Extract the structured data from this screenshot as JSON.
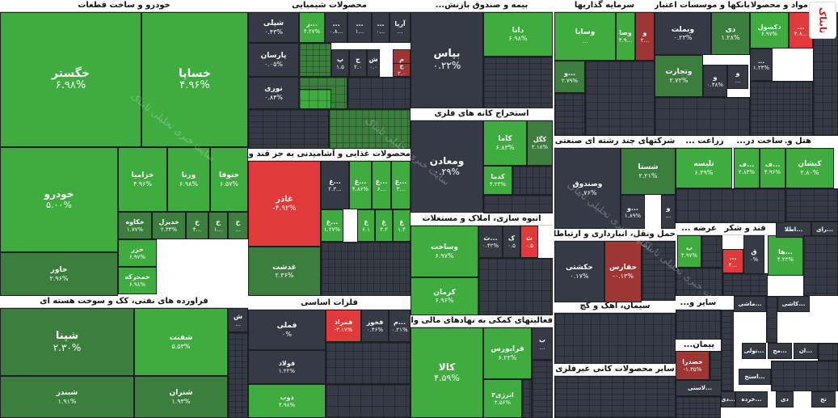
{
  "colors": {
    "dark": "#363a45",
    "mid": "#3c7e3e",
    "green": "#3eac3f",
    "bright": "#45d949",
    "red": "#e13a3a",
    "darkred": "#9e3636",
    "orange": "#cf8d2e"
  },
  "logo_text": "تابناک",
  "watermark_text": "سایت خبری تحلیلی تابناک",
  "chart_data": {
    "type": "heatmap",
    "sectors": [
      {
        "id": "auto",
        "title": "خودرو و ساخت قطعات",
        "tiles": [
          {
            "id": "t1",
            "label": "خگستر",
            "value": "۶.۹۸%",
            "tone": "green"
          },
          {
            "id": "t2",
            "label": "خساپا",
            "value": "۴.۹۶%",
            "tone": "green"
          },
          {
            "id": "t3",
            "label": "خودرو",
            "value": "۵.۰۰%",
            "tone": "green"
          },
          {
            "id": "t4",
            "label": "خزامیا",
            "value": "۴.۹۶%",
            "tone": "green"
          },
          {
            "id": "t5",
            "label": "ورنا",
            "value": "۶.۹۸%",
            "tone": "green"
          },
          {
            "id": "t6",
            "label": "ختوقا",
            "value": "۶.۵۷%",
            "tone": "green"
          },
          {
            "id": "t7",
            "label": "خکاوه",
            "value": "۱.۷۷%",
            "tone": "mid"
          },
          {
            "id": "t8",
            "label": "خدیزل",
            "value": "۲.۳۳%",
            "tone": "mid"
          },
          {
            "id": "t9",
            "label": "خ",
            "value": "۴...",
            "tone": "mid"
          },
          {
            "id": "t10",
            "label": "خ",
            "value": "۱...",
            "tone": "mid"
          },
          {
            "id": "t11",
            "label": "خ",
            "value": "...",
            "tone": "mid"
          },
          {
            "id": "t12",
            "label": "خزر",
            "value": "۶.۹۷%",
            "tone": "green"
          },
          {
            "id": "t13",
            "label": "خمحرکه",
            "value": "۶.۹۸%",
            "tone": "green"
          },
          {
            "id": "t14",
            "label": "خاور",
            "value": "۲.۹۶%",
            "tone": "mid"
          }
        ]
      },
      {
        "id": "chem",
        "title": "محصولات شیمیایی",
        "tiles": [
          {
            "id": "c1",
            "label": "شپلی",
            "value": "۰.۴۳%",
            "tone": "dark"
          },
          {
            "id": "c2",
            "label": "ز...",
            "value": "۴.۲۷%",
            "tone": "green"
          },
          {
            "id": "c3",
            "label": "...",
            "value": "۰.۸...",
            "tone": "dark"
          },
          {
            "id": "c4",
            "label": "...",
            "value": "۱...",
            "tone": "dark"
          },
          {
            "id": "c5",
            "label": "...",
            "value": "۰...",
            "tone": "dark"
          },
          {
            "id": "c6",
            "label": "آریا",
            "value": "...",
            "tone": "dark"
          },
          {
            "id": "c7",
            "label": "پارسان",
            "value": "۰.۰۵%",
            "tone": "dark"
          },
          {
            "id": "c8",
            "label": "پ",
            "value": "۱.۵",
            "tone": "dark"
          },
          {
            "id": "c9",
            "label": "ج",
            "value": "۲.۰",
            "tone": "dark"
          },
          {
            "id": "c10",
            "label": "ش",
            "value": "۰.۰",
            "tone": "dark"
          },
          {
            "id": "c11",
            "label": "م",
            "value": "۲.۵",
            "tone": "darkred"
          },
          {
            "id": "c12",
            "label": "ح",
            "value": "۲.۰",
            "tone": "darkred"
          },
          {
            "id": "c13",
            "label": "نوری",
            "value": "۰.۸۴%",
            "tone": "dark"
          }
        ]
      },
      {
        "id": "etf",
        "title": "بیمه و صندوق بازنش...",
        "tiles": [
          {
            "id": "e1",
            "label": "بپاس",
            "value": "۰.۲۲%",
            "tone": "dark"
          },
          {
            "id": "e2",
            "label": "دانا",
            "value": "۶.۹۸%",
            "tone": "green"
          }
        ]
      },
      {
        "id": "inv",
        "title": "سرمایه گذاریها",
        "tiles": [
          {
            "id": "i1",
            "label": "وسایا",
            "value": "...",
            "tone": "green"
          },
          {
            "id": "i2",
            "label": "وصا",
            "value": "۴.۹...",
            "tone": "green"
          },
          {
            "id": "i3",
            "label": "و",
            "value": "۲...",
            "tone": "darkred"
          },
          {
            "id": "i4",
            "label": "و...",
            "value": "۲.۷۹%",
            "tone": "mid"
          }
        ]
      },
      {
        "id": "bank",
        "title": "بانکها و موسسات اعتباری",
        "tiles": [
          {
            "id": "b1",
            "label": "وبملت",
            "value": "۰.۲۳%",
            "tone": "dark"
          },
          {
            "id": "b2",
            "label": "دی",
            "value": "۱.۲۸%",
            "tone": "mid"
          },
          {
            "id": "b3",
            "label": "وتجارت",
            "value": "۲.۷۲%",
            "tone": "mid"
          },
          {
            "id": "b4",
            "label": "و",
            "value": "۰.۴۸%",
            "tone": "dark"
          },
          {
            "id": "b5",
            "label": "و",
            "value": "...",
            "tone": "dark"
          }
        ]
      },
      {
        "id": "pharma",
        "title": "مواد و محصولات دارویی",
        "tiles": [
          {
            "id": "p1",
            "label": "دکسول",
            "value": "۶.۹۷%",
            "tone": "green"
          },
          {
            "id": "p2",
            "label": "...",
            "value": "۴.۸...",
            "tone": "red"
          },
          {
            "id": "p3",
            "label": "...",
            "value": "۱.۲۳%",
            "tone": "dark"
          }
        ]
      },
      {
        "id": "metal",
        "title": "استخراج کانه های فلزی",
        "tiles": [
          {
            "id": "m1",
            "label": "ومعادن",
            "value": "۰.۲۹%",
            "tone": "dark"
          },
          {
            "id": "m2",
            "label": "کاما",
            "value": "۶.۸۳%",
            "tone": "green"
          },
          {
            "id": "m3",
            "label": "کگل",
            "value": "۲.۱۸%",
            "tone": "mid"
          },
          {
            "id": "m4",
            "label": "کدما",
            "value": "۴.۲۳%",
            "tone": "green"
          }
        ]
      },
      {
        "id": "multi",
        "title": "شرکتهای چند رشته ای صنعتی",
        "tiles": [
          {
            "id": "u1",
            "label": "شستا",
            "value": "۲.۲۱%",
            "tone": "mid"
          },
          {
            "id": "u2",
            "label": "وصندوق",
            "value": "۰.۷۶%",
            "tone": "dark"
          },
          {
            "id": "u3",
            "label": "و...",
            "value": "۱.۸۹%",
            "tone": "dark"
          },
          {
            "id": "u4",
            "label": "و",
            "value": "...",
            "tone": "dark"
          }
        ]
      },
      {
        "id": "agri",
        "title": "زراعت ...",
        "tiles": [
          {
            "id": "a1",
            "label": "تلیسه",
            "value": "۶.۳۹%",
            "tone": "green"
          },
          {
            "id": "a2",
            "label": "ف...",
            "value": "۲.۸۳%",
            "tone": "green"
          },
          {
            "id": "a3",
            "label": "ف...",
            "value": "۴.۹۶%",
            "tone": "green"
          }
        ]
      },
      {
        "id": "build",
        "title": "ساخت در...",
        "tiles": [
          {
            "id": "s1",
            "label": "کیشان",
            "value": "۲.۸۰%",
            "tone": "green"
          }
        ]
      },
      {
        "id": "hotel",
        "title": "هتل و...",
        "tiles": []
      },
      {
        "id": "food",
        "title": "محصولات غذایی و آشامیدنی به جز قند و شکر",
        "tiles": [
          {
            "id": "f1",
            "label": "غاذر",
            "value": "-۴.۹۲%",
            "tone": "red"
          },
          {
            "id": "f2",
            "label": "غ...",
            "value": "۲.۳...",
            "tone": "dark"
          },
          {
            "id": "f3",
            "label": "غ...",
            "value": "۴.۸۶%",
            "tone": "green"
          },
          {
            "id": "f4",
            "label": "غ...",
            "value": "۶...",
            "tone": "green"
          },
          {
            "id": "f5",
            "label": "غ...",
            "value": "۳...",
            "tone": "green"
          },
          {
            "id": "f6",
            "label": "غدشت",
            "value": "۲.۳۶%",
            "tone": "mid"
          },
          {
            "id": "f7",
            "label": "غ...",
            "value": "۱.۲۷%",
            "tone": "green"
          },
          {
            "id": "f8",
            "label": "غ",
            "value": "۶.۱",
            "tone": "green"
          },
          {
            "id": "f9",
            "label": "غ",
            "value": "۳.۲",
            "tone": "green"
          },
          {
            "id": "f10",
            "label": "غ",
            "value": "۱.۴",
            "tone": "green"
          }
        ]
      },
      {
        "id": "mass",
        "title": "انبوه سازی، املاک و مستغلات",
        "tiles": [
          {
            "id": "n1",
            "label": "وساخت",
            "value": "۶.۹۷%",
            "tone": "green"
          },
          {
            "id": "n2",
            "label": "ث...",
            "value": "۰.۴۲%",
            "tone": "dark"
          },
          {
            "id": "n3",
            "label": "ک",
            "value": "۰.۵",
            "tone": "dark"
          },
          {
            "id": "n4",
            "label": "ث",
            "value": "۰.۵",
            "tone": "red"
          },
          {
            "id": "n5",
            "label": "کرمان",
            "value": "۶.۹۶%",
            "tone": "green"
          }
        ]
      },
      {
        "id": "transport",
        "title": "حمل ونقل، انبارداری و ارتباطات",
        "tiles": [
          {
            "id": "r1",
            "label": "حکشتی",
            "value": "۰.۱۷%",
            "tone": "dark"
          },
          {
            "id": "r2",
            "label": "حفارس",
            "value": "-۰.۱۳%",
            "tone": "darkred"
          }
        ]
      },
      {
        "id": "sugar",
        "title": "قند و شکر",
        "tiles": [
          {
            "id": "q1",
            "label": "ب",
            "value": "۴.۹۷%",
            "tone": "green"
          },
          {
            "id": "q2",
            "label": "...",
            "value": "۴...",
            "tone": "red"
          },
          {
            "id": "q3",
            "label": "ق",
            "value": "۰%",
            "tone": "dark"
          },
          {
            "id": "q4",
            "label": "ها...",
            "value": "۴.۲۳%",
            "tone": "green"
          }
        ]
      },
      {
        "id": "misc",
        "title": "عرضه ...",
        "tiles": []
      },
      {
        "id": "refine",
        "title": "فراورده های نفتی، کک و سوخت هسته ای",
        "tiles": [
          {
            "id": "o1",
            "label": "شپنا",
            "value": "۲.۳۰%",
            "tone": "mid"
          },
          {
            "id": "o2",
            "label": "شفنت",
            "value": "۵.۵۳%",
            "tone": "green"
          },
          {
            "id": "o3",
            "label": "ش",
            "value": "...",
            "tone": "dark"
          },
          {
            "id": "o4",
            "label": "شبندر",
            "value": "۱.۹۱%",
            "tone": "mid"
          },
          {
            "id": "o5",
            "label": "شتران",
            "value": "۱.۹۳%",
            "tone": "mid"
          }
        ]
      },
      {
        "id": "basemetal",
        "title": "فلزات اساسی",
        "tiles": [
          {
            "id": "g1",
            "label": "فملی",
            "value": "۰%",
            "tone": "dark"
          },
          {
            "id": "g2",
            "label": "فمراد",
            "value": "-۳.۱۷%",
            "tone": "red"
          },
          {
            "id": "g3",
            "label": "فخوز",
            "value": "۰.۴۶%",
            "tone": "dark"
          },
          {
            "id": "g4",
            "label": "م...",
            "value": "۰.۲۱%",
            "tone": "dark"
          },
          {
            "id": "g5",
            "label": "فولاد",
            "value": "۱.۲۲%",
            "tone": "dark"
          },
          {
            "id": "g6",
            "label": "ذوب",
            "value": "۴.۹۸%",
            "tone": "green"
          }
        ]
      },
      {
        "id": "fin",
        "title": "فعالیتهای کمکی به نهادهای مالی واسط",
        "tiles": [
          {
            "id": "h1",
            "label": "کالا",
            "value": "۴.۵۹%",
            "tone": "green"
          },
          {
            "id": "h2",
            "label": "فرابورس",
            "value": "۶.۲۲%",
            "tone": "green"
          },
          {
            "id": "h3",
            "label": "ب",
            "value": "...",
            "tone": "dark"
          },
          {
            "id": "h4",
            "label": "انرژی۳",
            "value": "۲.۵۶%",
            "tone": "green"
          }
        ]
      },
      {
        "id": "cement",
        "title": "سیمان، آهک و گچ",
        "tiles": []
      },
      {
        "id": "other",
        "title": "سایر و...",
        "tiles": []
      },
      {
        "id": "contract",
        "title": "پیمان...",
        "tiles": []
      },
      {
        "id": "nonmetal",
        "title": "سایر محصولات کانی غیرفلزی",
        "tiles": []
      },
      {
        "id": "khodra",
        "title": "",
        "tiles": [
          {
            "id": "k1",
            "label": "خصدرا",
            "value": "-۱.۳۵%",
            "tone": "darkred"
          }
        ]
      },
      {
        "id": "tiny",
        "title": "",
        "tiles": [
          {
            "id": "y1",
            "label": "رای...",
            "value": "",
            "tone": "dark"
          },
          {
            "id": "y2",
            "label": "اطلا...",
            "value": "",
            "tone": "dark"
          },
          {
            "id": "y3",
            "label": "ماشی...",
            "value": "",
            "tone": "dark"
          },
          {
            "id": "y4",
            "label": "کاشی...",
            "value": "",
            "tone": "dark"
          },
          {
            "id": "y5",
            "label": "م...",
            "value": "",
            "tone": "dark"
          },
          {
            "id": "y6",
            "label": "ان...",
            "value": "",
            "tone": "dark"
          },
          {
            "id": "y7",
            "label": "مح...",
            "value": "",
            "tone": "dark"
          },
          {
            "id": "y8",
            "label": "تولی...",
            "value": "",
            "tone": "dark"
          },
          {
            "id": "y9",
            "label": "استخ...",
            "value": "",
            "tone": "dark"
          },
          {
            "id": "y10",
            "label": "لاستی...",
            "value": "",
            "tone": "dark"
          },
          {
            "id": "y11",
            "label": "خرده...",
            "value": "",
            "tone": "dark"
          },
          {
            "id": "y12",
            "label": "دی...",
            "value": "",
            "tone": "dark"
          },
          {
            "id": "y13",
            "label": "دی",
            "value": "",
            "tone": "dark"
          },
          {
            "id": "y14",
            "label": "تج",
            "value": "",
            "tone": "dark"
          }
        ]
      }
    ]
  }
}
